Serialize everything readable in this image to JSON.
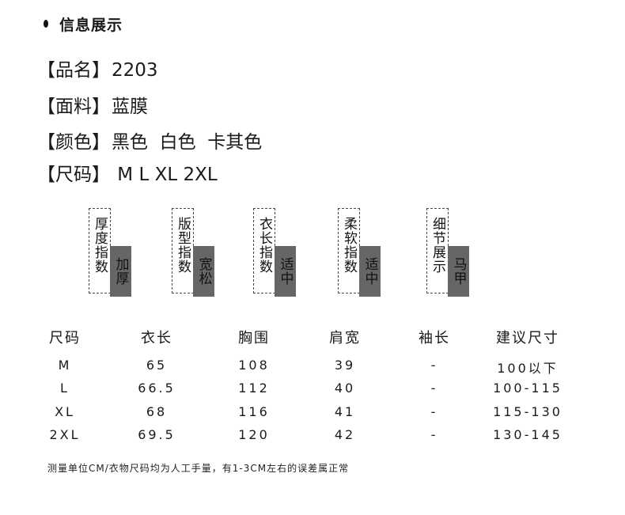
{
  "header": {
    "title": "信息展示"
  },
  "info": [
    {
      "label": "【品名】",
      "value": "2203"
    },
    {
      "label": "【面料】",
      "value": "蓝膜"
    },
    {
      "label": "【颜色】",
      "value": "黑色  白色  卡其色"
    },
    {
      "label": "【尺码】",
      "value": " M L XL 2XL"
    }
  ],
  "indices": [
    {
      "label": "厚度指数",
      "value": "加厚"
    },
    {
      "label": "版型指数",
      "value": "宽松"
    },
    {
      "label": "衣长指数",
      "value": "适中"
    },
    {
      "label": "柔软指数",
      "value": "适中"
    },
    {
      "label": "细节展示",
      "value": "马甲"
    }
  ],
  "size_table": {
    "headers": [
      "尺码",
      "衣长",
      "胸围",
      "肩宽",
      "袖长",
      "建议尺寸"
    ],
    "rows": [
      [
        "M",
        "65",
        "108",
        "39",
        "-",
        "100以下"
      ],
      [
        "L",
        "66.5",
        "112",
        "40",
        "-",
        "100-115"
      ],
      [
        "XL",
        "68",
        "116",
        "41",
        "-",
        "115-130"
      ],
      [
        "2XL",
        "69.5",
        "120",
        "42",
        "-",
        "130-145"
      ]
    ]
  },
  "footnote": "测量单位CM/衣物尺码均为人工手量，有1-3CM左右的误差属正常"
}
